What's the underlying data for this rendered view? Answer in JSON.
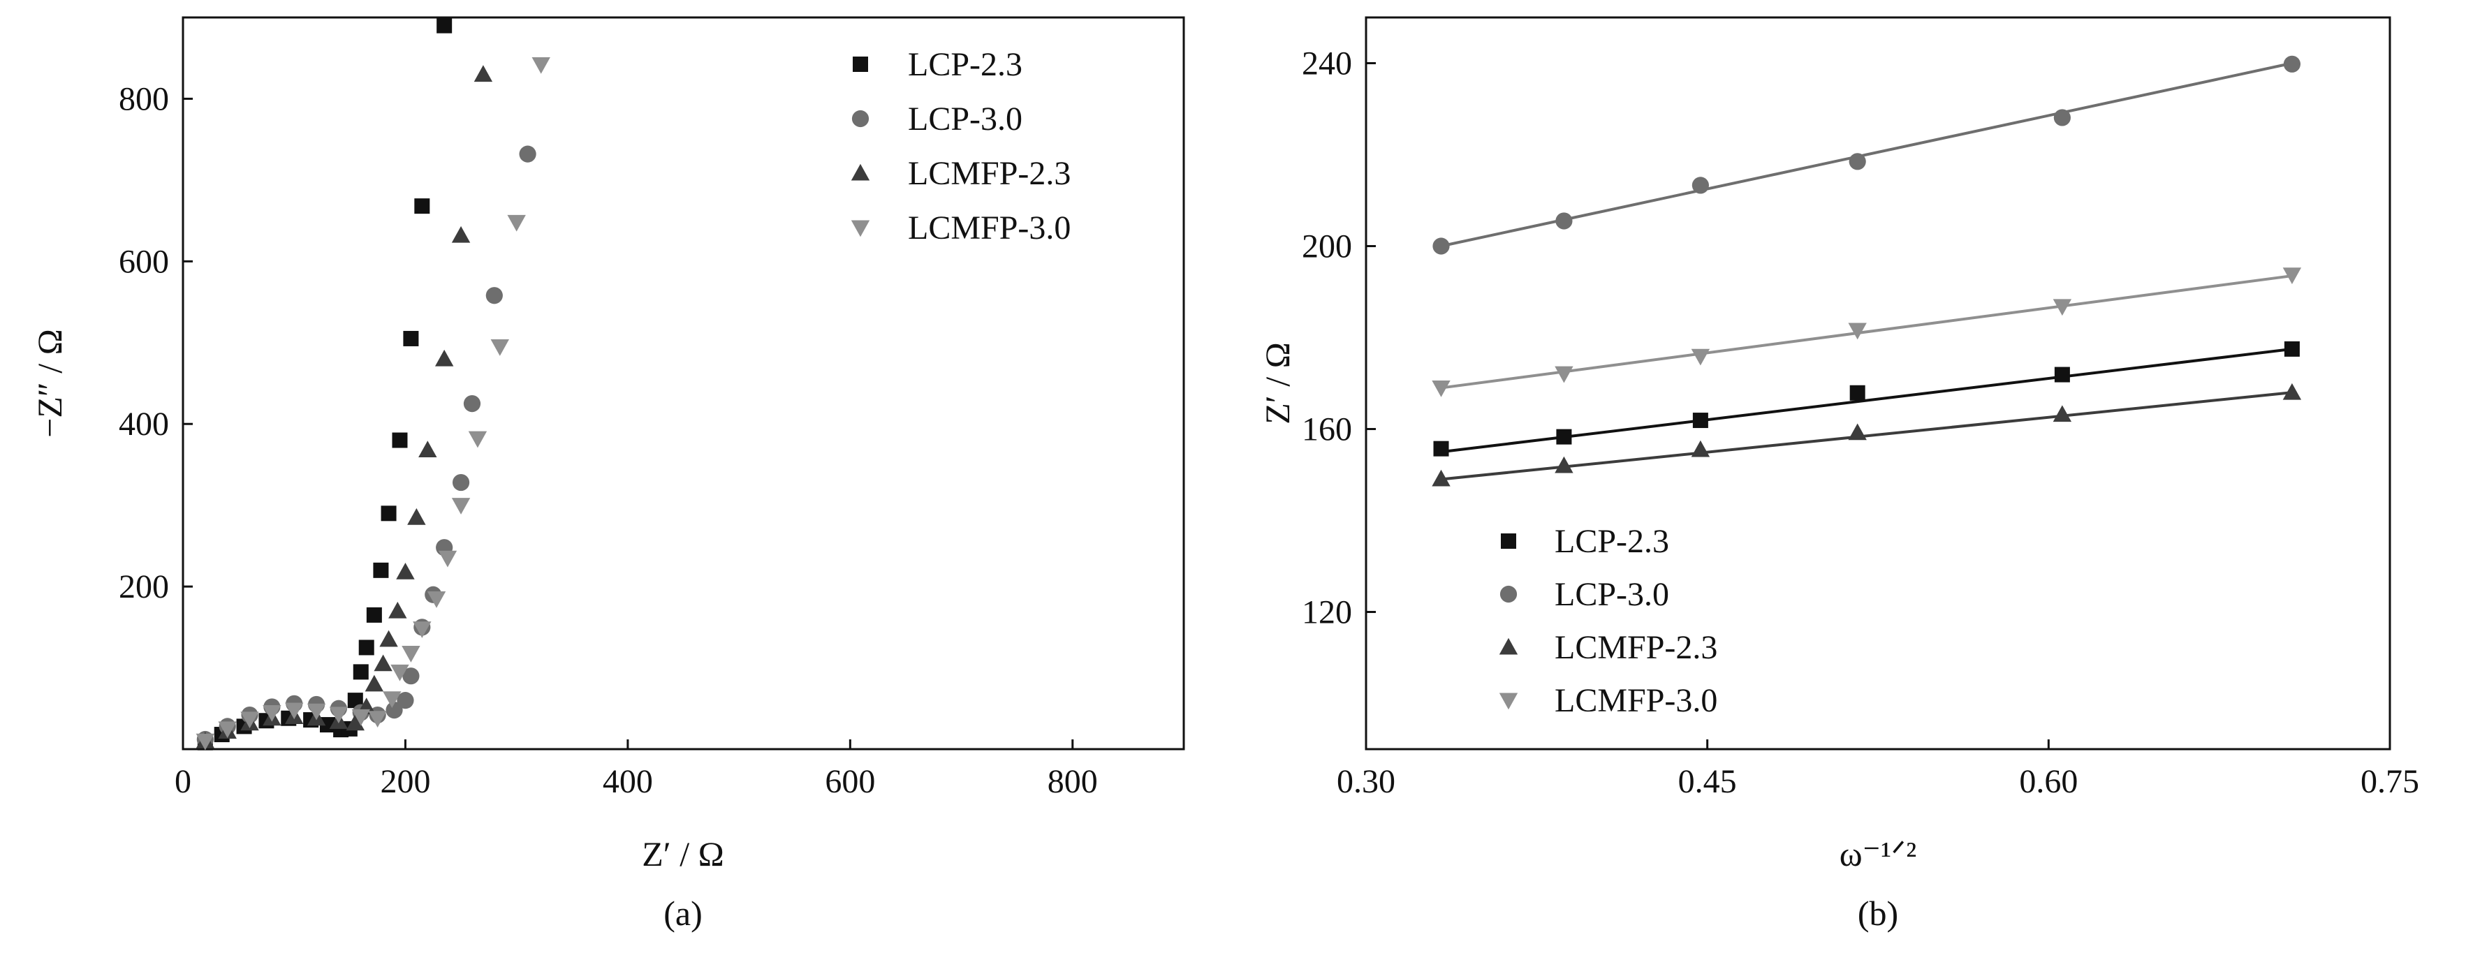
{
  "chart_data": [
    {
      "type": "scatter",
      "panel_label": "(a)",
      "xlabel": "Z′ / Ω",
      "ylabel": "−Z″ / Ω",
      "xlim": [
        0,
        900
      ],
      "ylim": [
        0,
        900
      ],
      "x_ticks": [
        "0",
        "200",
        "400",
        "600",
        "800"
      ],
      "y_ticks": [
        "200",
        "400",
        "600",
        "800"
      ],
      "legend_position": "top-right",
      "series": [
        {
          "name": "LCP-2.3",
          "marker": "square",
          "color": "#111111",
          "points": [
            [
              20,
              8
            ],
            [
              35,
              18
            ],
            [
              55,
              28
            ],
            [
              75,
              35
            ],
            [
              95,
              38
            ],
            [
              115,
              36
            ],
            [
              130,
              30
            ],
            [
              142,
              24
            ],
            [
              150,
              25
            ],
            [
              155,
              60
            ],
            [
              160,
              95
            ],
            [
              165,
              125
            ],
            [
              172,
              165
            ],
            [
              178,
              220
            ],
            [
              185,
              290
            ],
            [
              195,
              380
            ],
            [
              205,
              505
            ],
            [
              215,
              668
            ],
            [
              235,
              890
            ]
          ]
        },
        {
          "name": "LCP-3.0",
          "marker": "circle",
          "color": "#6e6e6e",
          "points": [
            [
              20,
              12
            ],
            [
              40,
              28
            ],
            [
              60,
              42
            ],
            [
              80,
              52
            ],
            [
              100,
              56
            ],
            [
              120,
              55
            ],
            [
              140,
              50
            ],
            [
              160,
              45
            ],
            [
              175,
              42
            ],
            [
              190,
              48
            ],
            [
              200,
              60
            ],
            [
              205,
              90
            ],
            [
              215,
              150
            ],
            [
              225,
              190
            ],
            [
              235,
              248
            ],
            [
              250,
              328
            ],
            [
              260,
              425
            ],
            [
              280,
              558
            ],
            [
              310,
              732
            ]
          ]
        },
        {
          "name": "LCMFP-2.3",
          "marker": "triangle-up",
          "color": "#3c3c3c",
          "points": [
            [
              20,
              10
            ],
            [
              40,
              22
            ],
            [
              60,
              32
            ],
            [
              80,
              38
            ],
            [
              100,
              40
            ],
            [
              120,
              38
            ],
            [
              140,
              34
            ],
            [
              155,
              32
            ],
            [
              165,
              52
            ],
            [
              172,
              80
            ],
            [
              180,
              105
            ],
            [
              185,
              135
            ],
            [
              193,
              170
            ],
            [
              200,
              218
            ],
            [
              210,
              285
            ],
            [
              220,
              368
            ],
            [
              235,
              480
            ],
            [
              250,
              632
            ],
            [
              270,
              830
            ]
          ]
        },
        {
          "name": "LCMFP-3.0",
          "marker": "triangle-down",
          "color": "#8f8f8f",
          "points": [
            [
              20,
              10
            ],
            [
              40,
              25
            ],
            [
              60,
              37
            ],
            [
              80,
              45
            ],
            [
              100,
              48
            ],
            [
              120,
              47
            ],
            [
              140,
              43
            ],
            [
              160,
              40
            ],
            [
              175,
              38
            ],
            [
              188,
              62
            ],
            [
              195,
              95
            ],
            [
              205,
              118
            ],
            [
              215,
              148
            ],
            [
              228,
              185
            ],
            [
              238,
              235
            ],
            [
              250,
              300
            ],
            [
              265,
              382
            ],
            [
              285,
              495
            ],
            [
              300,
              648
            ],
            [
              322,
              842
            ]
          ]
        }
      ]
    },
    {
      "type": "scatter",
      "panel_label": "(b)",
      "xlabel": "ω⁻¹ᐟ²",
      "ylabel": "Z′ / Ω",
      "xlim": [
        0.3,
        0.75
      ],
      "ylim": [
        90,
        250
      ],
      "x_ticks": [
        "0.30",
        "0.45",
        "0.60",
        "0.75"
      ],
      "y_ticks": [
        "120",
        "160",
        "200",
        "240"
      ],
      "legend_position": "bottom-left",
      "x": [
        0.333,
        0.387,
        0.447,
        0.516,
        0.606,
        0.707
      ],
      "series": [
        {
          "name": "LCP-2.3",
          "marker": "square",
          "color": "#111111",
          "values": [
            155.7,
            158.3,
            161.9,
            167.9,
            171.9,
            177.5
          ],
          "fit": [
            155.0,
            177.5
          ]
        },
        {
          "name": "LCP-3.0",
          "marker": "circle",
          "color": "#6e6e6e",
          "values": [
            200.0,
            205.5,
            213.3,
            218.5,
            228.1,
            239.8
          ],
          "fit": [
            200.0,
            240.0
          ]
        },
        {
          "name": "LCMFP-2.3",
          "marker": "triangle-up",
          "color": "#3c3c3c",
          "values": [
            149.1,
            152.0,
            155.5,
            159.2,
            163.2,
            168.0
          ],
          "fit": [
            149.0,
            168.0
          ]
        },
        {
          "name": "LCMFP-3.0",
          "marker": "triangle-down",
          "color": "#8f8f8f",
          "values": [
            169.0,
            172.1,
            175.9,
            181.6,
            186.8,
            193.7
          ],
          "fit": [
            169.0,
            193.5
          ]
        }
      ]
    }
  ]
}
